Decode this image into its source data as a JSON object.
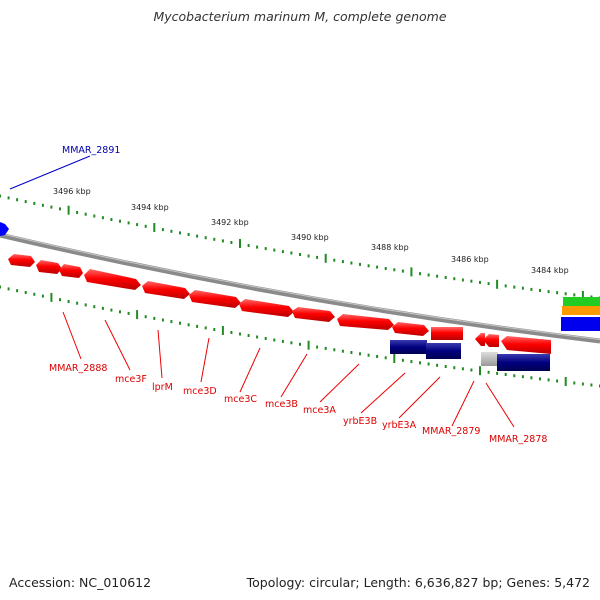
{
  "header": {
    "title": "Mycobacterium marinum M, complete genome"
  },
  "scale": {
    "labels": [
      "3496 kbp",
      "3494 kbp",
      "3492 kbp",
      "3490 kbp",
      "3488 kbp",
      "3486 kbp",
      "3484 kbp"
    ]
  },
  "genes": {
    "mmar_2891": "MMAR_2891",
    "mmar_2888": "MMAR_2888",
    "mce3f": "mce3F",
    "lprm": "lprM",
    "mce3d": "mce3D",
    "mce3c": "mce3C",
    "mce3b": "mce3B",
    "mce3a": "mce3A",
    "yrbe3b": "yrbE3B",
    "yrbe3a": "yrbE3A",
    "mmar_2879": "MMAR_2879",
    "mmar_2878": "MMAR_2878"
  },
  "colors": {
    "forward_gene": "#ff0000",
    "reverse_gene": "#000080",
    "labels_forward": "#dd0000",
    "labels_other": "#0000aa",
    "scale_ticks": "#228b22"
  },
  "footer": {
    "accession": "Accession: NC_010612",
    "topology": "Topology: circular; Length: 6,636,827 bp; Genes: 5,472"
  }
}
